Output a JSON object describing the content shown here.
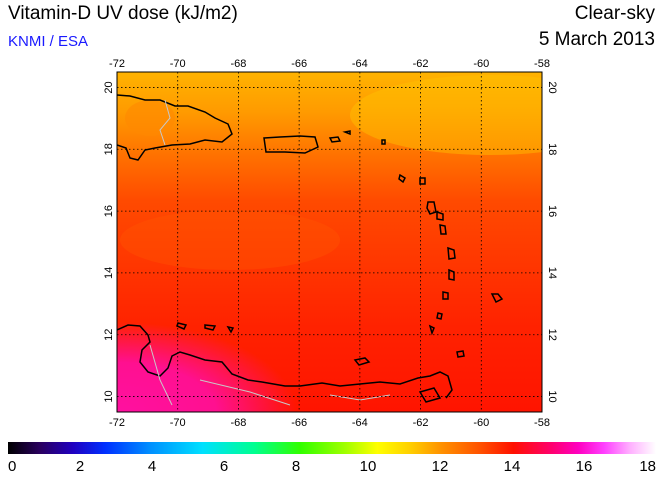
{
  "header": {
    "title": "Vitamin-D UV dose (kJ/m2)",
    "credit": "KNMI / ESA",
    "product": "Clear-sky",
    "date": "5 March 2013"
  },
  "map": {
    "lon_ticks": [
      "-72",
      "-70",
      "-68",
      "-66",
      "-64",
      "-62",
      "-60",
      "-58"
    ],
    "lat_ticks": [
      "10",
      "12",
      "14",
      "16",
      "18",
      "20"
    ],
    "lon_range": [
      -72,
      -58
    ],
    "lat_range": [
      9.5,
      20.5
    ],
    "region": "Caribbean Sea / Lesser Antilles",
    "grid": true
  },
  "colorbar": {
    "labels": [
      "0",
      "2",
      "4",
      "6",
      "8",
      "10",
      "12",
      "14",
      "16",
      "18"
    ],
    "range": [
      0,
      18
    ]
  }
}
